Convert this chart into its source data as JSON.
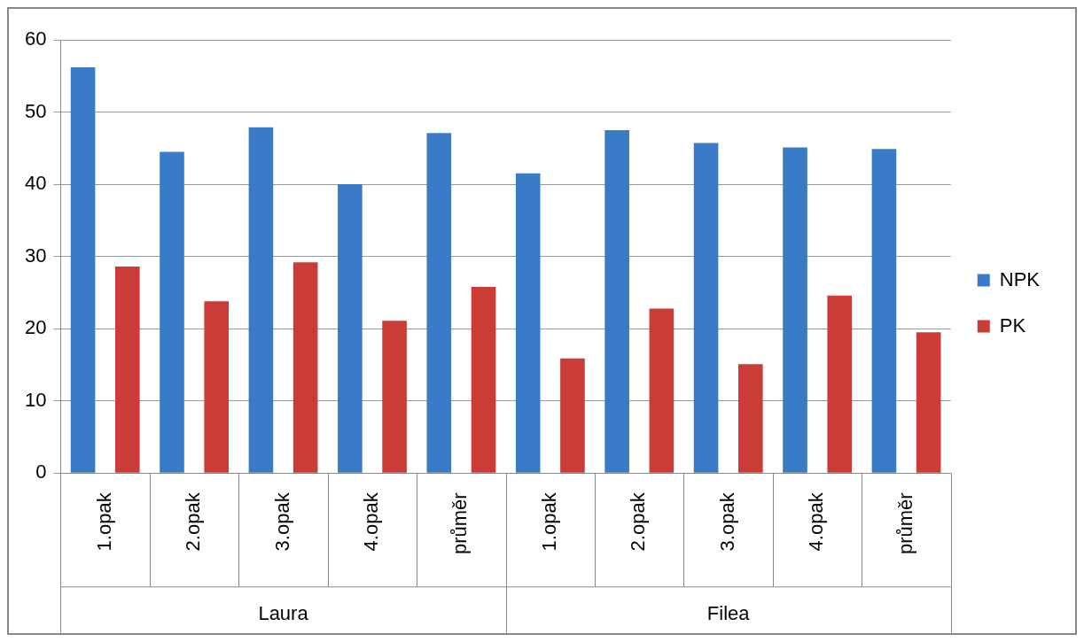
{
  "chart_data": {
    "type": "bar",
    "categories": [
      "1.opak",
      "2.opak",
      "3.opak",
      "4.opak",
      "průměr",
      "1.opak",
      "2.opak",
      "3.opak",
      "4.opak",
      "průměr"
    ],
    "series": [
      {
        "name": "NPK",
        "color": "#3a7bc8",
        "values": [
          56.2,
          44.5,
          47.9,
          40.0,
          47.1,
          41.5,
          47.5,
          45.7,
          45.1,
          44.9
        ]
      },
      {
        "name": "PK",
        "color": "#c93c37",
        "values": [
          28.6,
          23.8,
          29.2,
          21.1,
          25.8,
          15.9,
          22.8,
          15.1,
          24.6,
          19.5
        ]
      }
    ],
    "annotations": [
      "Laura",
      "Filea"
    ],
    "ylim": [
      0,
      60
    ],
    "yticks": [
      0,
      10,
      20,
      30,
      40,
      50,
      60
    ],
    "grid": "y",
    "legend": "right"
  }
}
